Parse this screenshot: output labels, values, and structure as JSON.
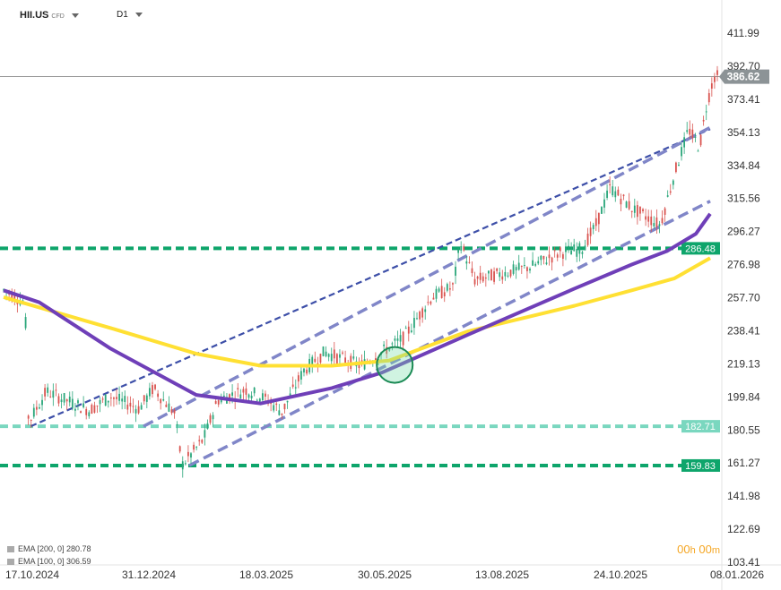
{
  "header": {
    "symbol": "HII.US",
    "instrument_type": "CFD",
    "timeframe": "D1"
  },
  "legend": [
    {
      "label": "EMA [200, 0] 280.78"
    },
    {
      "label": "EMA [100, 0] 306.59"
    }
  ],
  "timer": {
    "hours": "00",
    "h_unit": "h",
    "minutes": "00",
    "m_unit": "m"
  },
  "colors": {
    "up": "#2aa67a",
    "down": "#d9534f",
    "ema100": "#6f3fb8",
    "ema200": "#ffe033",
    "channel_dark": "#3d4fa8",
    "channel_light": "#8086c8",
    "level_green": "#0ea56b",
    "level_teal": "#7ad7bf",
    "price": "#8c9396"
  },
  "chart_data": {
    "type": "candlestick",
    "y_ticks": [
      "411.99",
      "392.70",
      "373.41",
      "354.13",
      "334.84",
      "315.56",
      "296.27",
      "276.98",
      "257.70",
      "238.41",
      "219.13",
      "199.84",
      "180.55",
      "161.27",
      "141.98",
      "122.69",
      "103.41"
    ],
    "x_ticks": [
      "17.10.2024",
      "31.12.2024",
      "18.03.2025",
      "30.05.2025",
      "13.08.2025",
      "24.10.2025",
      "08.01.2026"
    ],
    "ylim": [
      103.41,
      411.99
    ],
    "current_price": 386.62,
    "levels": [
      {
        "value": 286.48,
        "label": "286.48",
        "color": "#0ea56b"
      },
      {
        "value": 182.71,
        "label": "182.71",
        "color": "#7ad7bf"
      },
      {
        "value": 159.83,
        "label": "159.83",
        "color": "#0ea56b"
      }
    ],
    "ema100_path": [
      [
        0,
        262
      ],
      [
        0.05,
        255
      ],
      [
        0.15,
        228
      ],
      [
        0.27,
        201
      ],
      [
        0.36,
        196
      ],
      [
        0.46,
        205
      ],
      [
        0.53,
        214
      ],
      [
        0.65,
        236
      ],
      [
        0.8,
        263
      ],
      [
        0.88,
        277
      ],
      [
        0.93,
        285
      ],
      [
        0.97,
        295
      ],
      [
        0.99,
        306.6
      ]
    ],
    "ema200_path": [
      [
        0,
        258
      ],
      [
        0.05,
        252
      ],
      [
        0.15,
        240
      ],
      [
        0.27,
        225
      ],
      [
        0.36,
        218
      ],
      [
        0.46,
        218
      ],
      [
        0.54,
        221
      ],
      [
        0.65,
        238
      ],
      [
        0.8,
        253
      ],
      [
        0.88,
        262
      ],
      [
        0.94,
        269
      ],
      [
        0.99,
        280.8
      ]
    ],
    "channels": [
      {
        "p1": [
          0.038,
          182.7
        ],
        "p2": [
          0.99,
          356
        ],
        "style": "dark"
      },
      {
        "p1": [
          0.196,
          182.7
        ],
        "p2": [
          0.99,
          357
        ],
        "style": "light"
      },
      {
        "p1": [
          0.26,
          159.8
        ],
        "p2": [
          0.99,
          314
        ],
        "style": "light"
      }
    ],
    "marker": {
      "x": 0.548,
      "y": 218.5
    },
    "price_path": [
      [
        0,
        262
      ],
      [
        0.03,
        255
      ],
      [
        0.035,
        185
      ],
      [
        0.06,
        203
      ],
      [
        0.12,
        192
      ],
      [
        0.15,
        200
      ],
      [
        0.19,
        193
      ],
      [
        0.21,
        205
      ],
      [
        0.24,
        190
      ],
      [
        0.25,
        160
      ],
      [
        0.28,
        175
      ],
      [
        0.3,
        198
      ],
      [
        0.34,
        204
      ],
      [
        0.37,
        198
      ],
      [
        0.39,
        191
      ],
      [
        0.42,
        215
      ],
      [
        0.45,
        226
      ],
      [
        0.5,
        218
      ],
      [
        0.53,
        226
      ],
      [
        0.56,
        234
      ],
      [
        0.6,
        258
      ],
      [
        0.63,
        264
      ],
      [
        0.64,
        290
      ],
      [
        0.66,
        268
      ],
      [
        0.7,
        272
      ],
      [
        0.74,
        276
      ],
      [
        0.78,
        284
      ],
      [
        0.81,
        286
      ],
      [
        0.83,
        300
      ],
      [
        0.85,
        322
      ],
      [
        0.88,
        310
      ],
      [
        0.92,
        300
      ],
      [
        0.94,
        330
      ],
      [
        0.96,
        356
      ],
      [
        0.975,
        345
      ],
      [
        0.985,
        370
      ],
      [
        0.995,
        386.6
      ]
    ]
  }
}
